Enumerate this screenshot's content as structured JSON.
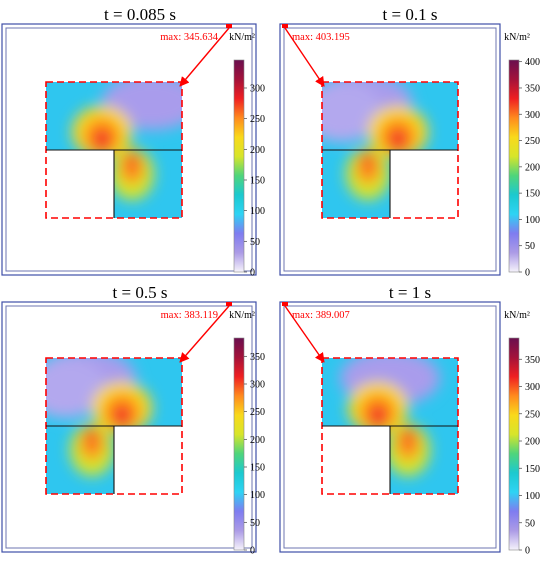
{
  "figure": {
    "unit_label": "kN/m²",
    "colormap_stops": [
      "#f6f3fb",
      "#ac9be6",
      "#7f7cf0",
      "#2ed3f4",
      "#1cc9cf",
      "#4fd57b",
      "#d7e52a",
      "#f9d91b",
      "#ff8a1e",
      "#ef1f22",
      "#a3123a",
      "#6a0f4f"
    ],
    "annotation_color": "#ff0000",
    "panels": [
      {
        "title": "t = 0.085 s",
        "max_label": "max: 345.634",
        "colorbar_ticks": [
          "300",
          "250",
          "200",
          "150",
          "100",
          "50",
          "0"
        ],
        "colorbar_max": 345.634,
        "empty_quadrant": "bottom-left"
      },
      {
        "title": "t = 0.1 s",
        "max_label": "max: 403.195",
        "colorbar_ticks": [
          "400",
          "350",
          "300",
          "250",
          "200",
          "150",
          "100",
          "50",
          "0"
        ],
        "colorbar_max": 403.195,
        "empty_quadrant": "bottom-right"
      },
      {
        "title": "t = 0.5 s",
        "max_label": "max: 383.119",
        "colorbar_ticks": [
          "350",
          "300",
          "250",
          "200",
          "150",
          "100",
          "50",
          "0"
        ],
        "colorbar_max": 383.119,
        "empty_quadrant": "bottom-right"
      },
      {
        "title": "t = 1 s",
        "max_label": "max: 389.007",
        "colorbar_ticks": [
          "350",
          "300",
          "250",
          "200",
          "150",
          "100",
          "50",
          "0"
        ],
        "colorbar_max": 389.007,
        "empty_quadrant": "bottom-left"
      }
    ]
  }
}
